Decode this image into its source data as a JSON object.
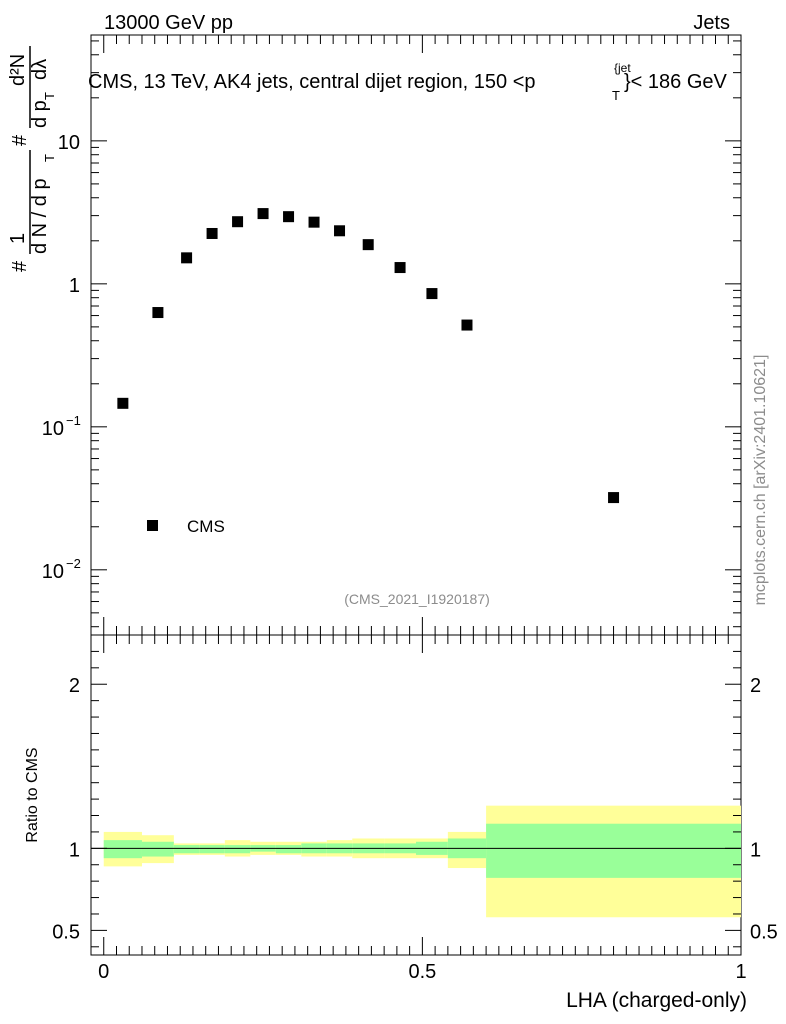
{
  "header": {
    "left": "13000 GeV pp",
    "right": "Jets"
  },
  "side_label": "mcplots.cern.ch [arXiv:2401.10621]",
  "chart_data": {
    "type": "scatter",
    "title": "CMS, 13 TeV, AK4 jets, central dijet region, 150 <p",
    "title_sup": "{jet",
    "title_sub": "T",
    "title_tail": "}< 186 GeV",
    "ylabel_parts": {
      "hash1": "#",
      "one": "1",
      "dN_dpT": "d N / d p",
      "T1": "T",
      "hash2": "#",
      "d_pT": "d p",
      "T2": "T",
      "d2N": "d²N",
      "d_lambda": "dλ"
    },
    "xlabel": "LHA (charged-only)",
    "ylabel_ratio": "Ratio to CMS",
    "analysis_id": "(CMS_2021_I1920187)",
    "legend": [
      {
        "name": "CMS",
        "marker": "square",
        "position": "bottom-left"
      }
    ],
    "main_axis": {
      "scale": "log",
      "ylim": [
        0.0035,
        55
      ],
      "yticks": [
        {
          "v": 0.01,
          "label": "10",
          "exp": "−2"
        },
        {
          "v": 0.1,
          "label": "10",
          "exp": "−1"
        },
        {
          "v": 1,
          "label": "1",
          "exp": ""
        },
        {
          "v": 10,
          "label": "10",
          "exp": ""
        }
      ]
    },
    "x_axis": {
      "xlim": [
        -0.02,
        1.0
      ],
      "ticks": [
        {
          "v": 0,
          "label": "0"
        },
        {
          "v": 0.5,
          "label": "0.5"
        },
        {
          "v": 1,
          "label": "1"
        }
      ]
    },
    "ratio_axis": {
      "ylim": [
        0.35,
        2.3
      ],
      "ticks": [
        {
          "v": 0.5,
          "label": "0.5"
        },
        {
          "v": 1,
          "label": "1"
        },
        {
          "v": 2,
          "label": "2"
        }
      ]
    },
    "series": [
      {
        "name": "CMS",
        "x": [
          0.03,
          0.085,
          0.13,
          0.17,
          0.21,
          0.25,
          0.29,
          0.33,
          0.37,
          0.415,
          0.465,
          0.515,
          0.57,
          0.8
        ],
        "values": [
          0.146,
          0.63,
          1.52,
          2.25,
          2.72,
          3.1,
          2.95,
          2.7,
          2.35,
          1.88,
          1.3,
          0.855,
          0.515,
          0.032
        ]
      }
    ],
    "ratio_bands": {
      "edges": [
        0.0,
        0.06,
        0.11,
        0.15,
        0.19,
        0.23,
        0.27,
        0.31,
        0.35,
        0.39,
        0.44,
        0.49,
        0.54,
        0.6,
        1.0
      ],
      "outer_low": [
        0.89,
        0.91,
        0.96,
        0.96,
        0.95,
        0.96,
        0.96,
        0.95,
        0.95,
        0.94,
        0.94,
        0.94,
        0.88,
        0.58
      ],
      "outer_high": [
        1.1,
        1.08,
        1.03,
        1.03,
        1.05,
        1.04,
        1.04,
        1.04,
        1.05,
        1.06,
        1.06,
        1.06,
        1.1,
        1.26
      ],
      "inner_low": [
        0.94,
        0.95,
        0.97,
        0.97,
        0.97,
        0.98,
        0.97,
        0.97,
        0.97,
        0.97,
        0.97,
        0.96,
        0.94,
        0.82
      ],
      "inner_high": [
        1.05,
        1.04,
        1.02,
        1.02,
        1.02,
        1.02,
        1.02,
        1.03,
        1.03,
        1.03,
        1.03,
        1.04,
        1.06,
        1.15
      ],
      "colors": {
        "outer": "#ffff99",
        "inner": "#99ff99"
      }
    }
  }
}
